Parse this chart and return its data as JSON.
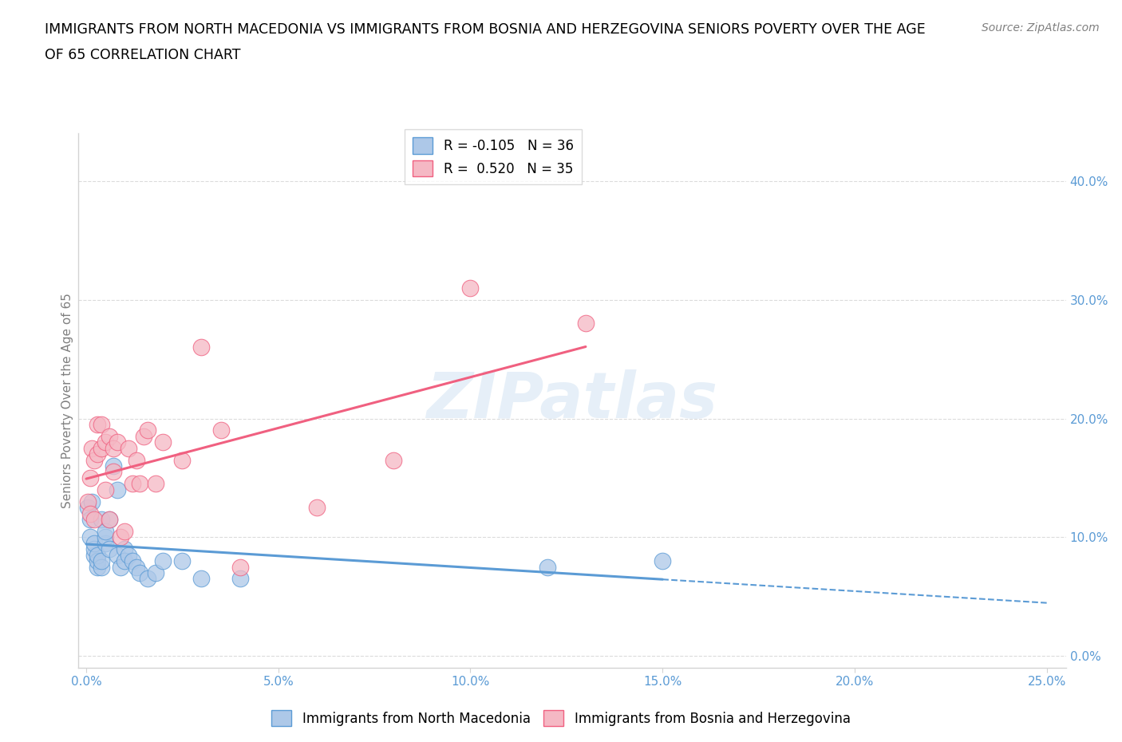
{
  "title_line1": "IMMIGRANTS FROM NORTH MACEDONIA VS IMMIGRANTS FROM BOSNIA AND HERZEGOVINA SENIORS POVERTY OVER THE AGE",
  "title_line2": "OF 65 CORRELATION CHART",
  "source": "Source: ZipAtlas.com",
  "xlabel_ticks": [
    "0.0%",
    "5.0%",
    "10.0%",
    "15.0%",
    "20.0%",
    "25.0%"
  ],
  "xlabel_vals": [
    0.0,
    0.05,
    0.1,
    0.15,
    0.2,
    0.25
  ],
  "ylabel_ticks": [
    "0.0%",
    "10.0%",
    "20.0%",
    "30.0%",
    "40.0%"
  ],
  "ylabel_vals": [
    0.0,
    0.1,
    0.2,
    0.3,
    0.4
  ],
  "ylabel_label": "Seniors Poverty Over the Age of 65",
  "xlim": [
    -0.002,
    0.255
  ],
  "ylim": [
    -0.01,
    0.44
  ],
  "color_blue": "#adc8e8",
  "color_pink": "#f5b8c4",
  "line_blue": "#5b9bd5",
  "line_pink": "#f06080",
  "R_blue": -0.105,
  "N_blue": 36,
  "R_pink": 0.52,
  "N_pink": 35,
  "legend_label_blue": "Immigrants from North Macedonia",
  "legend_label_pink": "Immigrants from Bosnia and Herzegovina",
  "watermark": "ZIPatlas",
  "blue_x": [
    0.0005,
    0.001,
    0.001,
    0.0015,
    0.002,
    0.002,
    0.002,
    0.003,
    0.003,
    0.003,
    0.004,
    0.004,
    0.004,
    0.005,
    0.005,
    0.005,
    0.006,
    0.006,
    0.007,
    0.008,
    0.008,
    0.009,
    0.01,
    0.01,
    0.011,
    0.012,
    0.013,
    0.014,
    0.016,
    0.018,
    0.02,
    0.025,
    0.03,
    0.04,
    0.12,
    0.15
  ],
  "blue_y": [
    0.125,
    0.1,
    0.115,
    0.13,
    0.085,
    0.09,
    0.095,
    0.075,
    0.08,
    0.085,
    0.075,
    0.08,
    0.115,
    0.095,
    0.1,
    0.105,
    0.115,
    0.09,
    0.16,
    0.14,
    0.085,
    0.075,
    0.09,
    0.08,
    0.085,
    0.08,
    0.075,
    0.07,
    0.065,
    0.07,
    0.08,
    0.08,
    0.065,
    0.065,
    0.075,
    0.08
  ],
  "pink_x": [
    0.0005,
    0.001,
    0.001,
    0.0015,
    0.002,
    0.002,
    0.003,
    0.003,
    0.004,
    0.004,
    0.005,
    0.005,
    0.006,
    0.006,
    0.007,
    0.007,
    0.008,
    0.009,
    0.01,
    0.011,
    0.012,
    0.013,
    0.014,
    0.015,
    0.016,
    0.018,
    0.02,
    0.025,
    0.03,
    0.035,
    0.04,
    0.06,
    0.08,
    0.1,
    0.13
  ],
  "pink_y": [
    0.13,
    0.12,
    0.15,
    0.175,
    0.115,
    0.165,
    0.195,
    0.17,
    0.195,
    0.175,
    0.14,
    0.18,
    0.115,
    0.185,
    0.175,
    0.155,
    0.18,
    0.1,
    0.105,
    0.175,
    0.145,
    0.165,
    0.145,
    0.185,
    0.19,
    0.145,
    0.18,
    0.165,
    0.26,
    0.19,
    0.075,
    0.125,
    0.165,
    0.31,
    0.28
  ]
}
